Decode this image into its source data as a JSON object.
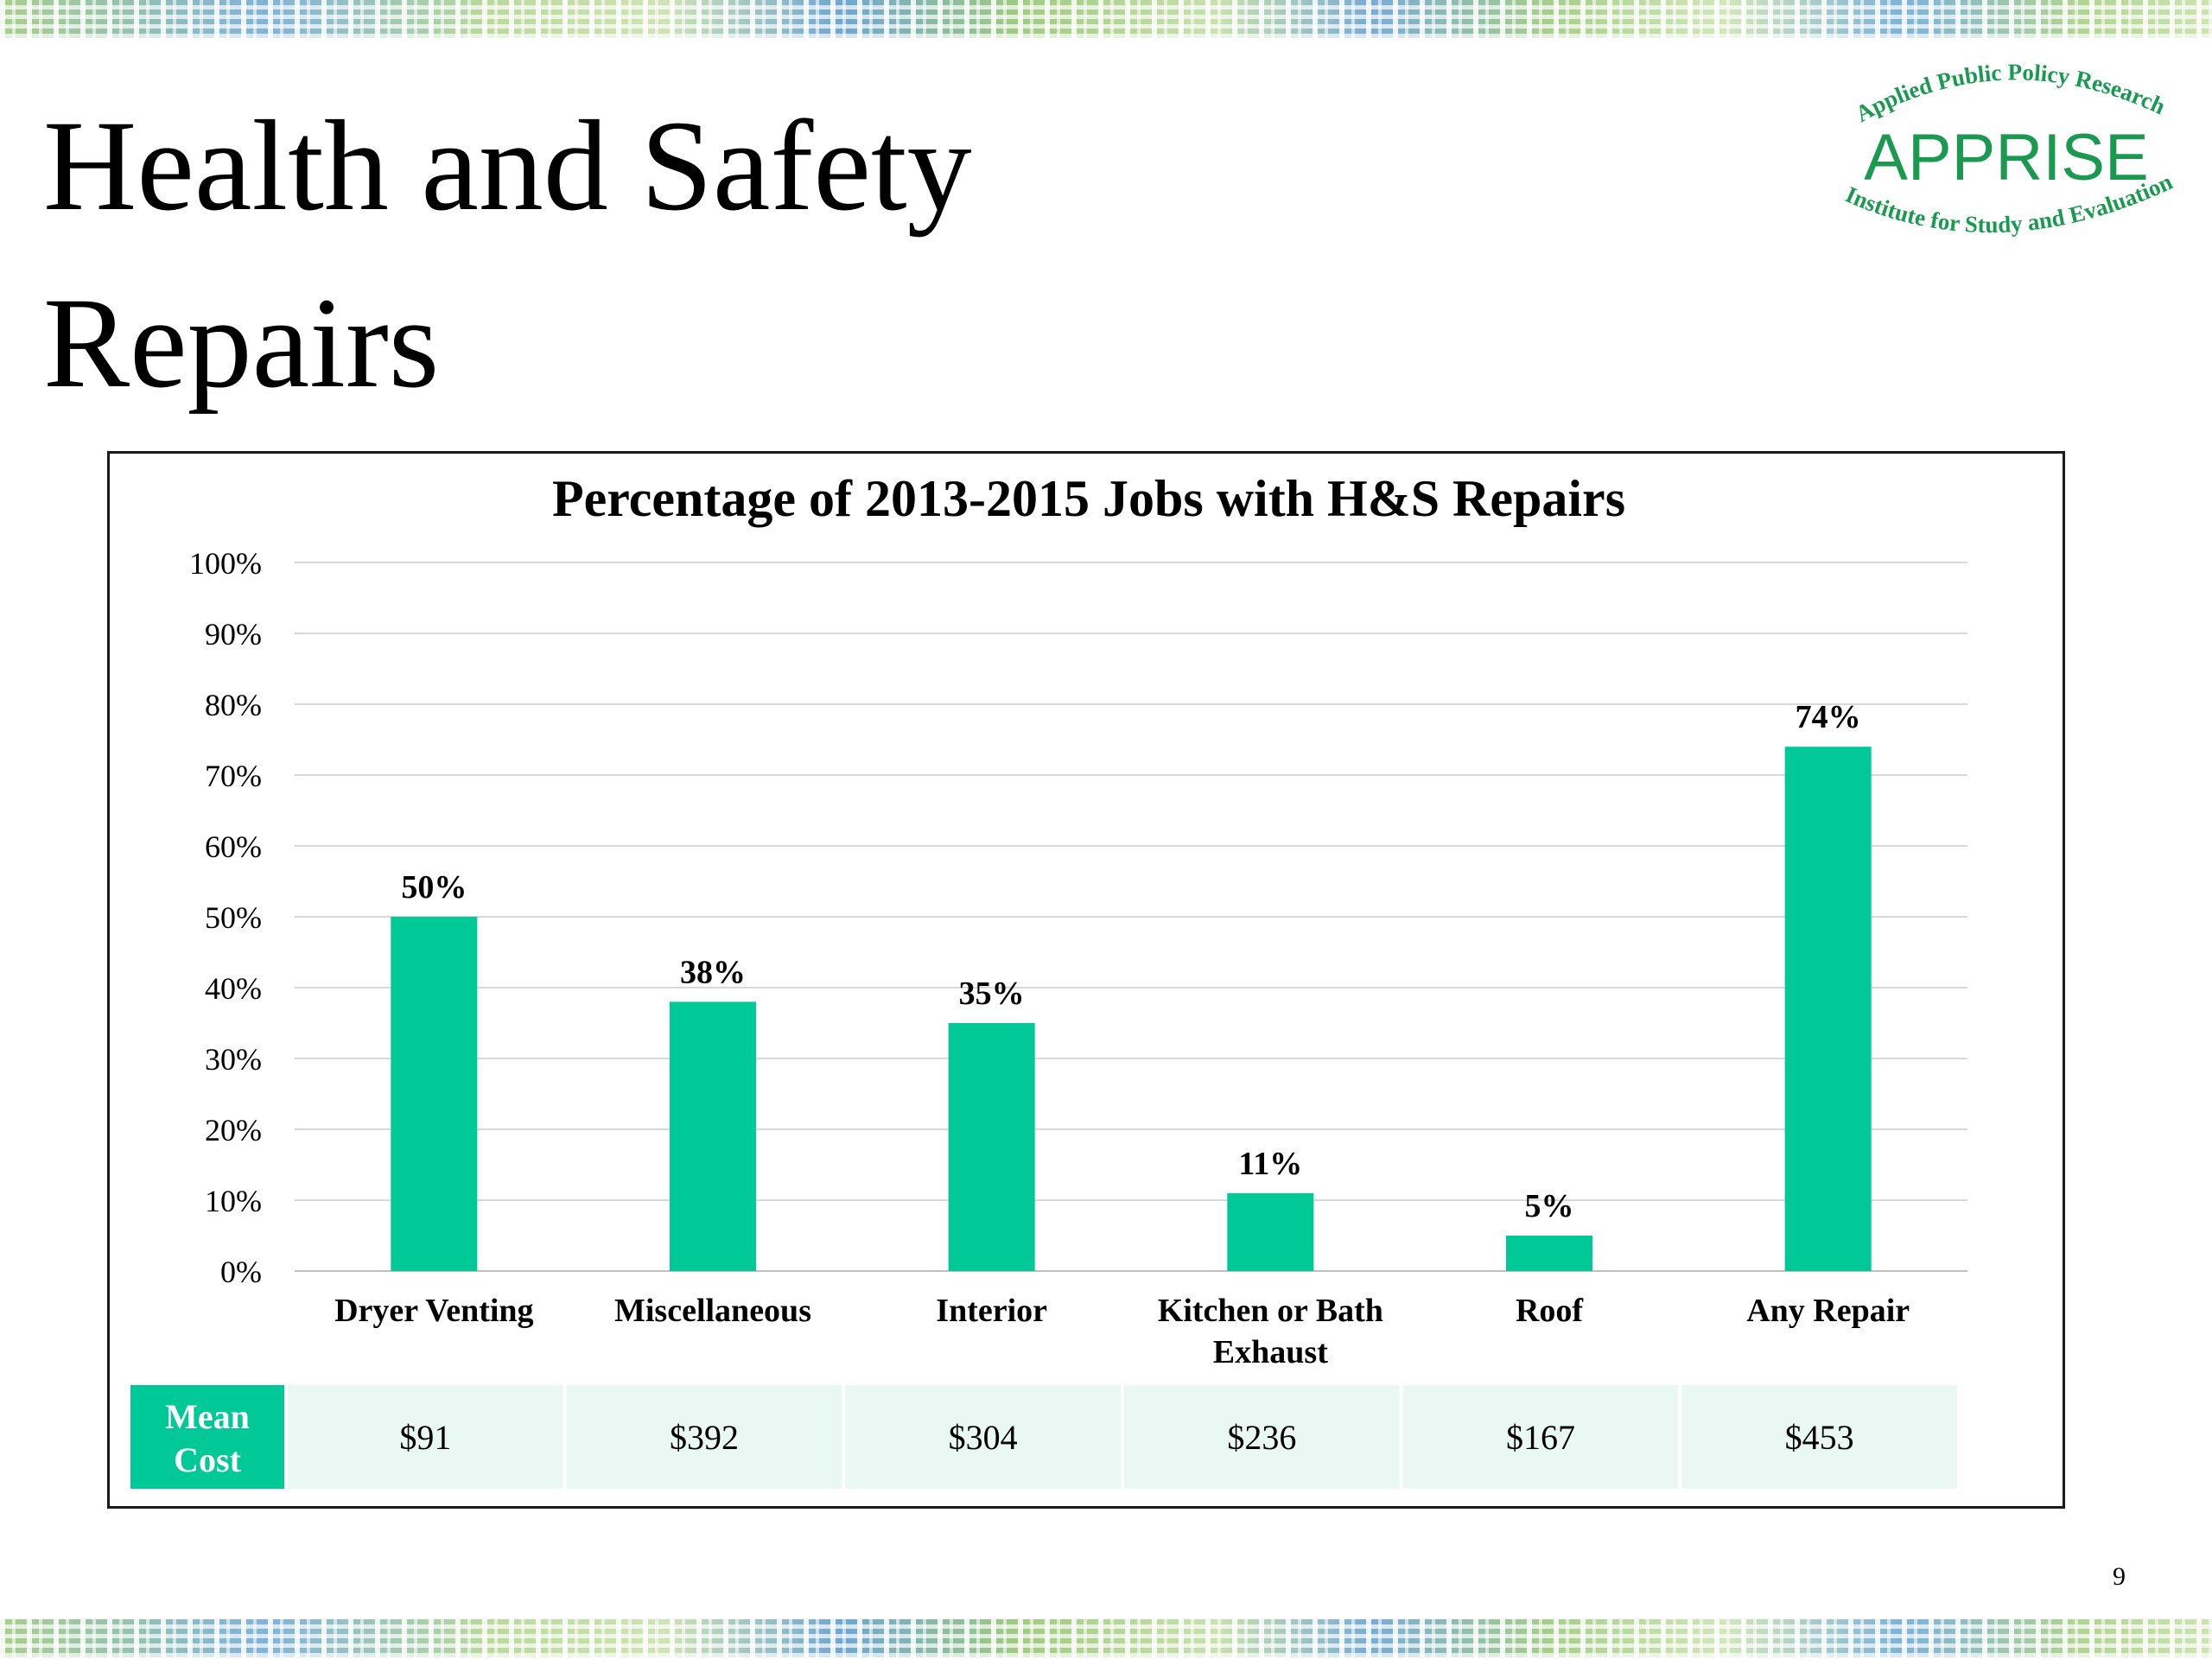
{
  "slide": {
    "title": "Health and Safety\nRepairs",
    "page_number": "9",
    "logo": {
      "top_text": "Applied Public Policy Research",
      "name": "APPRISE",
      "bottom_text": "Institute for Study and Evaluation"
    }
  },
  "colors": {
    "bar": "#00c896",
    "table_header_bg": "#00c896",
    "table_row_bg": "#eaf8f3",
    "gridline": "#d9d9d9",
    "logo_green": "#1a9a50"
  },
  "chart_data": {
    "type": "bar",
    "title": "Percentage of 2013-2015 Jobs with H&S Repairs",
    "categories": [
      [
        "Dryer Venting"
      ],
      [
        "Miscellaneous"
      ],
      [
        "Interior"
      ],
      [
        "Kitchen or Bath",
        "Exhaust"
      ],
      [
        "Roof"
      ],
      [
        "Any Repair"
      ]
    ],
    "values": [
      50,
      38,
      35,
      11,
      5,
      74
    ],
    "data_labels": [
      "50%",
      "38%",
      "35%",
      "11%",
      "5%",
      "74%"
    ],
    "ylim": [
      0,
      100
    ],
    "yticks": [
      "0%",
      "10%",
      "20%",
      "30%",
      "40%",
      "50%",
      "60%",
      "70%",
      "80%",
      "90%",
      "100%"
    ],
    "grid": true,
    "legend": "none",
    "table": {
      "header": [
        "Mean",
        "Cost"
      ],
      "values": [
        "$91",
        "$392",
        "$304",
        "$236",
        "$167",
        "$453"
      ]
    }
  }
}
